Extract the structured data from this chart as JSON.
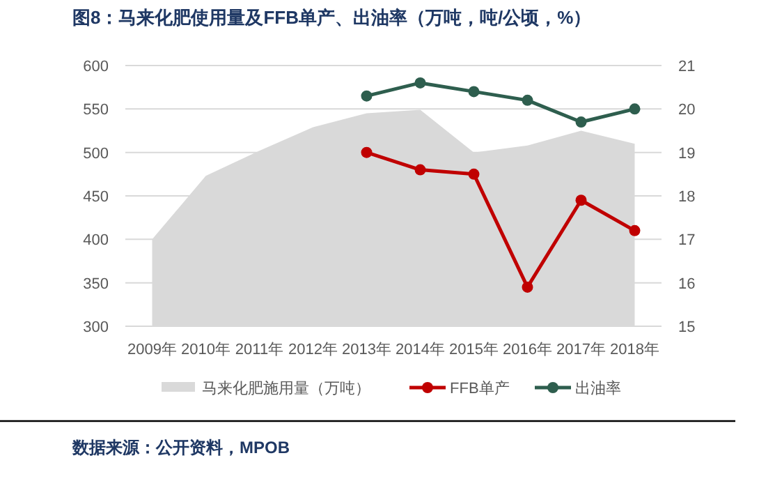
{
  "chart_data": {
    "type": "line",
    "title": "图8：马来化肥使用量及FFB单产、出油率（万吨，吨/公顷，%）",
    "categories": [
      "2009年",
      "2010年",
      "2011年",
      "2012年",
      "2013年",
      "2014年",
      "2015年",
      "2016年",
      "2017年",
      "2018年"
    ],
    "series": [
      {
        "name": "马来化肥施用量（万吨）",
        "type": "area",
        "color": "#d9d9d9",
        "values": [
          400,
          473,
          502,
          529,
          545,
          549,
          500,
          508,
          525,
          510
        ]
      },
      {
        "name": "FFB单产",
        "marker": "circle",
        "axis": "y2",
        "color": "#c00000",
        "values": [
          null,
          null,
          null,
          null,
          19.0,
          18.6,
          18.5,
          15.9,
          17.9,
          17.2
        ]
      },
      {
        "name": "出油率",
        "marker": "circle",
        "axis": "y2",
        "color": "#2e5e4e",
        "values": [
          null,
          null,
          null,
          null,
          20.3,
          20.6,
          20.4,
          20.2,
          19.7,
          20.0
        ]
      }
    ],
    "ylim": [
      300,
      600
    ],
    "yticks": [
      300,
      350,
      400,
      450,
      500,
      550,
      600
    ],
    "y2lim": [
      15,
      21
    ],
    "y2ticks": [
      15,
      16,
      17,
      18,
      19,
      20,
      21
    ],
    "grid": "y",
    "legend": "bottom",
    "annotations": [
      "数据来源：公开资料，MPOB"
    ]
  }
}
